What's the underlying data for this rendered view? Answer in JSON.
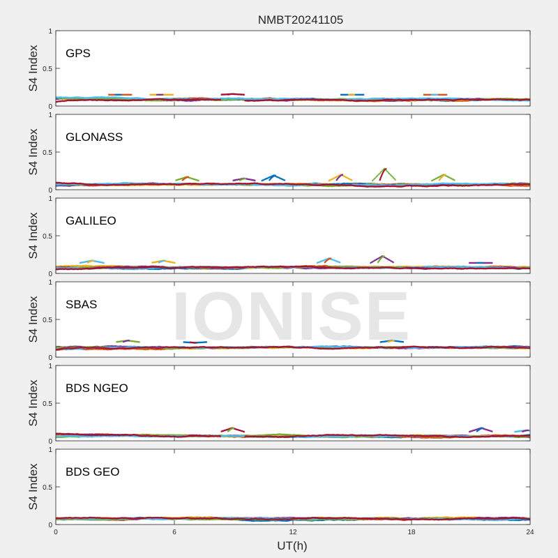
{
  "figure": {
    "title": "NMBT20241105",
    "xlabel": "UT(h)",
    "watermark": "IONISE",
    "background": "#f0f0f0"
  },
  "chart_data": {
    "type": "scatter",
    "title": "NMBT20241105",
    "xlabel": "UT(h)",
    "ylabel": "S4 Index",
    "xlim": [
      0,
      24
    ],
    "ylim": [
      0,
      1
    ],
    "xticks": [
      "0",
      "6",
      "12",
      "18",
      "24"
    ],
    "yticks": [
      "0",
      "0.5",
      "1"
    ],
    "grid": false,
    "series_colors": [
      "#0072BD",
      "#D95319",
      "#EDB120",
      "#7E2F8E",
      "#77AC30",
      "#4DBEEE",
      "#A2142F"
    ],
    "panels": [
      {
        "label": "GPS",
        "background": "#ffffff",
        "typical_range": [
          0.03,
          0.15
        ],
        "events": [
          {
            "x": 3.2,
            "peak": 0.15
          },
          {
            "x": 5.3,
            "peak": 0.15
          },
          {
            "x": 8.9,
            "peak": 0.16
          },
          {
            "x": 15.0,
            "peak": 0.15
          },
          {
            "x": 19.2,
            "peak": 0.15
          }
        ]
      },
      {
        "label": "GLONASS",
        "background": "#ffffff",
        "typical_range": [
          0.03,
          0.12
        ],
        "events": [
          {
            "x": 6.6,
            "peak": 0.17
          },
          {
            "x": 9.5,
            "peak": 0.15
          },
          {
            "x": 11.0,
            "peak": 0.19
          },
          {
            "x": 14.4,
            "peak": 0.2
          },
          {
            "x": 16.6,
            "peak": 0.28
          },
          {
            "x": 19.6,
            "peak": 0.2
          }
        ]
      },
      {
        "label": "GALILEO",
        "background": "#ffffff",
        "typical_range": [
          0.03,
          0.14
        ],
        "events": [
          {
            "x": 1.8,
            "peak": 0.17
          },
          {
            "x": 5.4,
            "peak": 0.17
          },
          {
            "x": 13.8,
            "peak": 0.2
          },
          {
            "x": 16.5,
            "peak": 0.23
          },
          {
            "x": 21.5,
            "peak": 0.14
          }
        ]
      },
      {
        "label": "SBAS",
        "background": "#ffffff",
        "typical_range": [
          0.07,
          0.2
        ],
        "events": [
          {
            "x": 3.6,
            "peak": 0.22
          },
          {
            "x": 7.0,
            "peak": 0.19
          },
          {
            "x": 17.0,
            "peak": 0.22
          }
        ]
      },
      {
        "label": "BDS NGEO",
        "background": "#ffffff",
        "typical_range": [
          0.02,
          0.12
        ],
        "events": [
          {
            "x": 8.9,
            "peak": 0.17
          },
          {
            "x": 21.5,
            "peak": 0.17
          },
          {
            "x": 23.8,
            "peak": 0.14
          }
        ]
      },
      {
        "label": "BDS GEO",
        "background": "#ffffff",
        "typical_range": [
          0.06,
          0.1
        ],
        "events": []
      }
    ]
  }
}
